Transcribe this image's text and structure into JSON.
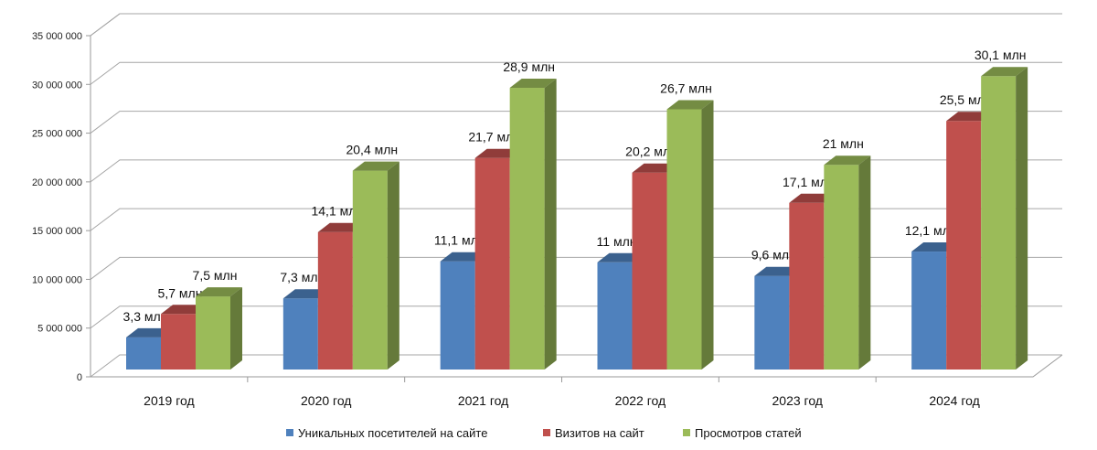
{
  "chart_data": {
    "type": "bar",
    "style": "3d-clustered",
    "categories": [
      "2019 год",
      "2020 год",
      "2021 год",
      "2022 год",
      "2023 год",
      "2024 год"
    ],
    "series": [
      {
        "name": "Уникальных посетителей на сайте",
        "color": "#4f81bd",
        "values": [
          3300000,
          7300000,
          11100000,
          11000000,
          9600000,
          12100000
        ],
        "labels": [
          "3,3 млн",
          "7,3 млн",
          "11,1 млн",
          "11 млн",
          "9,6 млн",
          "12,1 млн"
        ]
      },
      {
        "name": "Визитов на сайт",
        "color": "#c0504d",
        "values": [
          5700000,
          14100000,
          21700000,
          20200000,
          17100000,
          25500000
        ],
        "labels": [
          "5,7 млн",
          "14,1 млн",
          "21,7 млн",
          "20,2 млн",
          "17,1 млн",
          "25,5 млн"
        ]
      },
      {
        "name": "Просмотров статей",
        "color": "#9bbb59",
        "values": [
          7500000,
          20400000,
          28900000,
          26700000,
          21000000,
          30100000
        ],
        "labels": [
          "7,5 млн",
          "20,4 млн",
          "28,9 млн",
          "26,7 млн",
          "21 млн",
          "30,1 млн"
        ]
      }
    ],
    "yticks": [
      "0",
      "5 000 000",
      "10 000 000",
      "15 000 000",
      "20 000 000",
      "25 000 000",
      "30 000 000",
      "35 000 000"
    ],
    "ylim": [
      0,
      35000000
    ],
    "grid": true,
    "legend": "bottom",
    "title": "",
    "xlabel": "",
    "ylabel": ""
  }
}
